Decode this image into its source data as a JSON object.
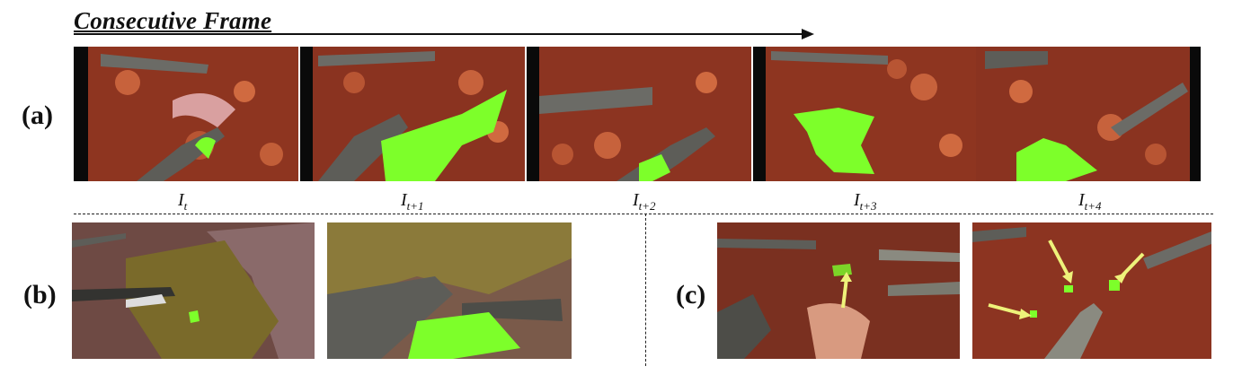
{
  "header": {
    "title": "Consecutive Frame"
  },
  "rows": {
    "a": "(a)",
    "b": "(b)",
    "c": "(c)"
  },
  "frame_labels": [
    {
      "base": "I",
      "sub": "t"
    },
    {
      "base": "I",
      "sub": "t+1"
    },
    {
      "base": "I",
      "sub": "t+2"
    },
    {
      "base": "I",
      "sub": "t+3"
    },
    {
      "base": "I",
      "sub": "t+4"
    }
  ],
  "colors": {
    "tissue": "#8e3520",
    "mask": "#7dff2a",
    "arrow_marker": "#eef27a",
    "instrument": "#5d5d58"
  }
}
